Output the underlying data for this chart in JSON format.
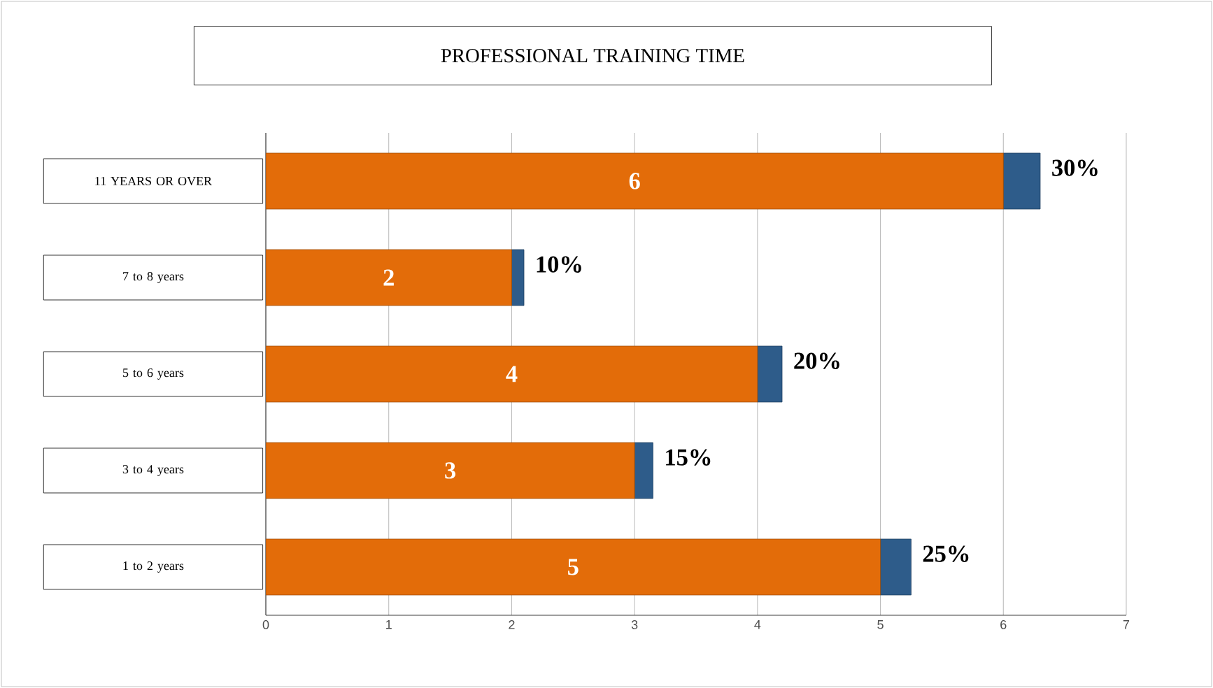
{
  "chart_data": {
    "type": "bar",
    "orientation": "horizontal",
    "stacked": true,
    "title": "PROFESSIONAL TRAINING TIME",
    "categories": [
      "11 YEARS OR OVER",
      "7 to 8 years",
      "5 to 6 years",
      "3 to 4 years",
      "1 to 2 years"
    ],
    "series": [
      {
        "color": "#e36c09",
        "values": [
          6,
          2,
          4,
          3,
          5
        ],
        "value_labels": [
          "6",
          "2",
          "4",
          "3",
          "5"
        ]
      },
      {
        "color": "#2e5c8a",
        "values": [
          0.3,
          0.1,
          0.2,
          0.15,
          0.25
        ],
        "value_labels": [
          "30%",
          "10%",
          "20%",
          "15%",
          "25%"
        ]
      }
    ],
    "xlim": [
      0,
      7
    ],
    "xticks": [
      0,
      1,
      2,
      3,
      4,
      5,
      6,
      7
    ],
    "grid": "x"
  }
}
